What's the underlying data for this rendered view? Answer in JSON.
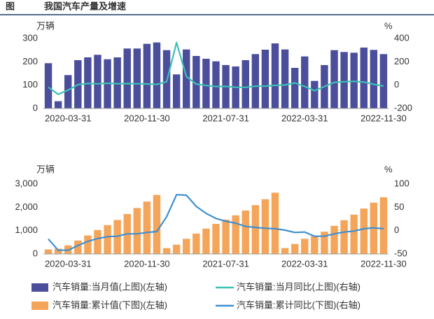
{
  "header": {
    "label": "图",
    "title": "我国汽车产量及增速"
  },
  "chart_data": [
    {
      "type": "combo",
      "y_unit": "万辆",
      "y2_unit": "%",
      "categories": [
        null,
        null,
        "2020-03-31",
        null,
        null,
        null,
        null,
        null,
        null,
        null,
        "2020-11-30",
        null,
        null,
        null,
        null,
        null,
        null,
        null,
        "2021-07-31",
        null,
        null,
        null,
        null,
        null,
        null,
        null,
        "2022-03-31",
        null,
        null,
        null,
        null,
        null,
        null,
        null,
        "2022-11-30"
      ],
      "ylim": [
        0,
        300
      ],
      "yticks": [
        0,
        100,
        200,
        300
      ],
      "y2lim": [
        -200,
        400
      ],
      "y2ticks": [
        -200,
        0,
        200,
        400
      ],
      "series": [
        {
          "name": "汽车销量:当月值(上图)(左轴)",
          "type": "bar",
          "axis": "y",
          "color": "#4b4e9a",
          "values": [
            194,
            31,
            143,
            207,
            219,
            230,
            211,
            219,
            257,
            257,
            277,
            283,
            250,
            146,
            253,
            225,
            213,
            202,
            186,
            180,
            207,
            233,
            252,
            279,
            253,
            174,
            223,
            118,
            186,
            250,
            242,
            239,
            261,
            251,
            233
          ]
        },
        {
          "name": "汽车销量:当月同比(上图)(右轴)",
          "type": "line",
          "axis": "y2",
          "color": "#3cc1b5",
          "values": [
            -18,
            -79,
            -43,
            4,
            14,
            11,
            16,
            12,
            13,
            12,
            10,
            6,
            30,
            365,
            75,
            9,
            -3,
            -12,
            -11,
            -18,
            -19,
            -9,
            -9,
            -2,
            1,
            19,
            -11,
            -48,
            -12,
            24,
            29,
            32,
            26,
            7,
            -8
          ]
        }
      ]
    },
    {
      "type": "combo",
      "y_unit": "万辆",
      "y2_unit": "%",
      "categories": [
        null,
        null,
        "2020-03-31",
        null,
        null,
        null,
        null,
        null,
        null,
        null,
        "2020-11-30",
        null,
        null,
        null,
        null,
        null,
        null,
        null,
        "2021-07-31",
        null,
        null,
        null,
        null,
        null,
        null,
        null,
        "2022-03-31",
        null,
        null,
        null,
        null,
        null,
        null,
        null,
        "2022-11-30"
      ],
      "ylim": [
        0,
        3000
      ],
      "yticks": [
        0,
        {
          "value": 1000,
          "label": "1,000"
        },
        {
          "value": 2000,
          "label": "2,000"
        },
        {
          "value": 3000,
          "label": "3,000"
        }
      ],
      "y2lim": [
        -50,
        100
      ],
      "y2ticks": [
        -50,
        0,
        50,
        100
      ],
      "series": [
        {
          "name": "汽车销量:累计值(下图)(左轴)",
          "type": "bar",
          "axis": "y",
          "color": "#f4a55a",
          "values": [
            194,
            225,
            367,
            574,
            793,
            1026,
            1237,
            1456,
            1713,
            1970,
            2247,
            2531,
            250,
            398,
            649,
            874,
            1087,
            1289,
            1475,
            1655,
            1862,
            2094,
            2347,
            2628,
            253,
            427,
            650,
            769,
            955,
            1206,
            1447,
            1686,
            1947,
            2198,
            2431
          ]
        },
        {
          "name": "汽车销量:累计同比(下图)(右轴)",
          "type": "line",
          "axis": "y2",
          "color": "#3f8fd0",
          "values": [
            -18,
            -42,
            -42,
            -32,
            -23,
            -17,
            -13,
            -12,
            -7,
            -7,
            -4,
            -2,
            30,
            77,
            76,
            52,
            37,
            26,
            20,
            16,
            9,
            7,
            5,
            4,
            1,
            -4,
            -3,
            -12,
            -12,
            -7,
            -3,
            -1,
            4,
            6,
            4
          ]
        }
      ]
    }
  ]
}
